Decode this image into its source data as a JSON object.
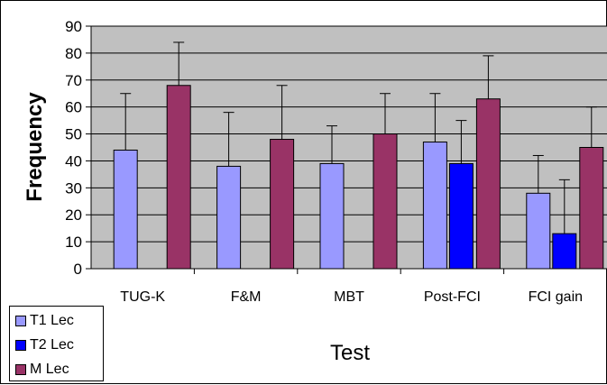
{
  "chart_data": {
    "type": "bar",
    "title": "",
    "xlabel": "Test",
    "ylabel": "Frequency",
    "ylim": [
      0,
      90
    ],
    "yticks": [
      0,
      10,
      20,
      30,
      40,
      50,
      60,
      70,
      80,
      90
    ],
    "grid": true,
    "legend_position": "bottom-left",
    "categories": [
      "TUG-K",
      "F&M",
      "MBT",
      "Post-FCI",
      "FCI gain"
    ],
    "series": [
      {
        "name": "T1 Lec",
        "color": "#9999ff",
        "values": [
          44,
          38,
          39,
          47,
          28
        ],
        "error_upper": [
          65,
          58,
          53,
          65,
          42
        ]
      },
      {
        "name": "T2 Lec",
        "color": "#0000ff",
        "values": [
          null,
          null,
          null,
          39,
          13
        ],
        "error_upper": [
          null,
          null,
          null,
          55,
          33
        ]
      },
      {
        "name": "M Lec",
        "color": "#993366",
        "values": [
          68,
          48,
          50,
          63,
          45
        ],
        "error_upper": [
          84,
          68,
          65,
          79,
          60
        ]
      }
    ],
    "plot_background": "#c0c0c0",
    "gridline_color": "#000000"
  }
}
